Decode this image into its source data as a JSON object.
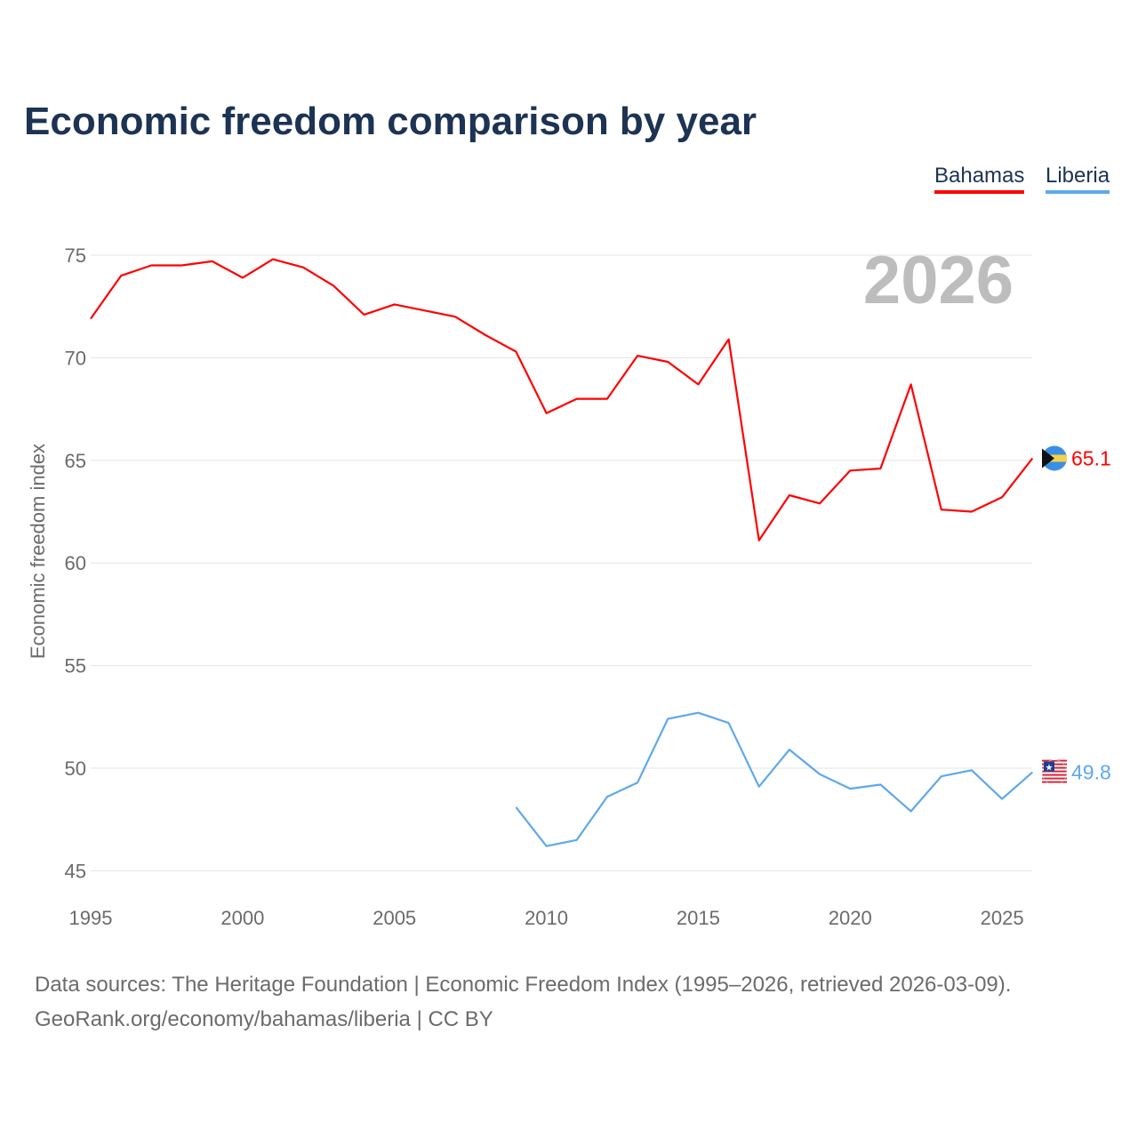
{
  "title": "Economic freedom comparison by year",
  "legend": [
    "Bahamas",
    "Liberia"
  ],
  "footer": {
    "line1": "Data sources: The Heritage Foundation | Economic Freedom Index (1995–2026, retrieved 2026-03-09).",
    "line2": "GeoRank.org/economy/bahamas/liberia | CC BY"
  },
  "chart_data": {
    "type": "line",
    "title": "Economic freedom comparison by year",
    "ylabel": "Economic freedom index",
    "xlabel": "",
    "ylim": [
      45,
      77
    ],
    "xlim": [
      1995,
      2026
    ],
    "yticks": [
      45,
      50,
      55,
      60,
      65,
      70,
      75
    ],
    "xticks": [
      1995,
      2000,
      2005,
      2010,
      2015,
      2020,
      2025
    ],
    "watermark_year": "2026",
    "grid": true,
    "legend_position": "top-right",
    "series": [
      {
        "name": "Bahamas",
        "color": "#ff0000",
        "end_label": "65.1",
        "x": [
          1995,
          1996,
          1997,
          1998,
          1999,
          2000,
          2001,
          2002,
          2003,
          2004,
          2005,
          2006,
          2007,
          2008,
          2009,
          2010,
          2011,
          2012,
          2013,
          2014,
          2015,
          2016,
          2017,
          2018,
          2019,
          2020,
          2021,
          2022,
          2023,
          2024,
          2025,
          2026
        ],
        "values": [
          71.9,
          74.0,
          74.5,
          74.5,
          74.7,
          73.9,
          74.8,
          74.4,
          73.5,
          72.1,
          72.6,
          72.3,
          72.0,
          71.1,
          70.3,
          67.3,
          68.0,
          68.0,
          70.1,
          69.8,
          68.7,
          70.9,
          61.1,
          63.3,
          62.9,
          64.5,
          64.6,
          68.7,
          62.6,
          62.5,
          63.2,
          65.1
        ]
      },
      {
        "name": "Liberia",
        "color": "#5ea8ec",
        "end_label": "49.8",
        "x": [
          2009,
          2010,
          2011,
          2012,
          2013,
          2014,
          2015,
          2016,
          2017,
          2018,
          2019,
          2020,
          2021,
          2022,
          2023,
          2024,
          2025,
          2026
        ],
        "values": [
          48.1,
          46.2,
          46.5,
          48.6,
          49.3,
          52.4,
          52.7,
          52.2,
          49.1,
          50.9,
          49.7,
          49.0,
          49.2,
          47.9,
          49.6,
          49.9,
          48.5,
          49.8
        ]
      }
    ]
  }
}
